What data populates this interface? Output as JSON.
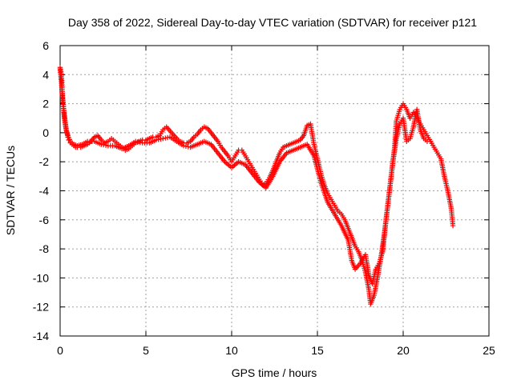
{
  "chart_data": {
    "type": "scatter",
    "title": "Day 358 of 2022, Sidereal Day-to-day VTEC variation (SDTVAR) for receiver p121",
    "xlabel": "GPS time / hours",
    "ylabel": "SDTVAR / TECUs",
    "xlim": [
      0,
      25
    ],
    "ylim": [
      -14,
      6
    ],
    "xticks": [
      0,
      5,
      10,
      15,
      20,
      25
    ],
    "xtick_labels": [
      "0",
      "5",
      "10",
      "15",
      "20",
      "25"
    ],
    "yticks": [
      -14,
      -12,
      -10,
      -8,
      -6,
      -4,
      -2,
      0,
      2,
      4,
      6
    ],
    "ytick_labels": [
      "-14",
      "-12",
      "-10",
      "-8",
      "-6",
      "-4",
      "-2",
      "0",
      "2",
      "4",
      "6"
    ],
    "grid": true,
    "marker": "+",
    "series": [
      {
        "name": "SDTVAR",
        "color": "#ff0000",
        "points": [
          [
            0.0,
            4.5
          ],
          [
            0.05,
            4.2
          ],
          [
            0.1,
            3.6
          ],
          [
            0.12,
            3.0
          ],
          [
            0.15,
            2.4
          ],
          [
            0.2,
            1.8
          ],
          [
            0.25,
            1.2
          ],
          [
            0.3,
            0.7
          ],
          [
            0.35,
            0.3
          ],
          [
            0.4,
            0.0
          ],
          [
            0.45,
            -0.3
          ],
          [
            0.5,
            -0.5
          ],
          [
            0.6,
            -0.7
          ],
          [
            0.7,
            -0.8
          ],
          [
            0.8,
            -0.9
          ],
          [
            0.9,
            -1.0
          ],
          [
            1.0,
            -1.0
          ],
          [
            1.2,
            -1.0
          ],
          [
            1.4,
            -0.9
          ],
          [
            1.6,
            -0.8
          ],
          [
            1.8,
            -0.6
          ],
          [
            2.0,
            -0.3
          ],
          [
            2.2,
            -0.2
          ],
          [
            2.4,
            -0.5
          ],
          [
            2.6,
            -0.7
          ],
          [
            2.8,
            -0.6
          ],
          [
            3.0,
            -0.4
          ],
          [
            3.2,
            -0.6
          ],
          [
            3.4,
            -0.8
          ],
          [
            3.6,
            -1.0
          ],
          [
            3.8,
            -1.2
          ],
          [
            4.0,
            -1.1
          ],
          [
            4.2,
            -0.9
          ],
          [
            4.4,
            -0.7
          ],
          [
            4.6,
            -0.6
          ],
          [
            4.8,
            -0.5
          ],
          [
            5.0,
            -0.5
          ],
          [
            5.2,
            -0.4
          ],
          [
            5.4,
            -0.3
          ],
          [
            5.6,
            -0.3
          ],
          [
            5.8,
            -0.2
          ],
          [
            6.0,
            0.2
          ],
          [
            6.2,
            0.4
          ],
          [
            6.5,
            0.0
          ],
          [
            6.8,
            -0.4
          ],
          [
            7.0,
            -0.6
          ],
          [
            7.2,
            -0.7
          ],
          [
            7.4,
            -0.7
          ],
          [
            7.6,
            -0.6
          ],
          [
            7.8,
            -0.3
          ],
          [
            8.0,
            -0.1
          ],
          [
            8.2,
            0.2
          ],
          [
            8.4,
            0.4
          ],
          [
            8.6,
            0.3
          ],
          [
            8.8,
            0.0
          ],
          [
            9.0,
            -0.3
          ],
          [
            9.2,
            -0.6
          ],
          [
            9.4,
            -1.0
          ],
          [
            9.6,
            -1.3
          ],
          [
            9.8,
            -1.6
          ],
          [
            10.0,
            -2.0
          ],
          [
            10.2,
            -1.6
          ],
          [
            10.4,
            -1.2
          ],
          [
            10.6,
            -1.2
          ],
          [
            10.8,
            -1.6
          ],
          [
            11.0,
            -2.0
          ],
          [
            11.2,
            -2.4
          ],
          [
            11.4,
            -2.8
          ],
          [
            11.6,
            -3.2
          ],
          [
            11.8,
            -3.6
          ],
          [
            12.0,
            -3.5
          ],
          [
            12.2,
            -3.1
          ],
          [
            12.4,
            -2.6
          ],
          [
            12.6,
            -2.0
          ],
          [
            12.8,
            -1.4
          ],
          [
            13.0,
            -1.0
          ],
          [
            13.2,
            -0.9
          ],
          [
            13.4,
            -0.8
          ],
          [
            13.6,
            -0.7
          ],
          [
            13.8,
            -0.6
          ],
          [
            14.0,
            -0.5
          ],
          [
            14.2,
            -0.2
          ],
          [
            14.4,
            0.5
          ],
          [
            14.6,
            0.6
          ],
          [
            14.8,
            -0.8
          ],
          [
            15.0,
            -1.8
          ],
          [
            15.2,
            -2.8
          ],
          [
            15.4,
            -3.6
          ],
          [
            15.6,
            -4.2
          ],
          [
            15.8,
            -4.6
          ],
          [
            16.0,
            -5.0
          ],
          [
            16.2,
            -5.4
          ],
          [
            16.4,
            -5.6
          ],
          [
            16.6,
            -6.0
          ],
          [
            16.8,
            -6.6
          ],
          [
            17.0,
            -7.2
          ],
          [
            17.2,
            -7.8
          ],
          [
            17.4,
            -8.2
          ],
          [
            17.6,
            -8.8
          ],
          [
            17.8,
            -9.6
          ],
          [
            18.0,
            -10.8
          ],
          [
            18.1,
            -11.8
          ],
          [
            18.3,
            -11.2
          ],
          [
            18.5,
            -10.0
          ],
          [
            18.7,
            -8.6
          ],
          [
            18.9,
            -7.0
          ],
          [
            19.1,
            -5.0
          ],
          [
            19.3,
            -3.0
          ],
          [
            19.5,
            -1.0
          ],
          [
            19.6,
            0.8
          ],
          [
            19.8,
            1.6
          ],
          [
            20.0,
            2.0
          ],
          [
            20.2,
            1.6
          ],
          [
            20.4,
            1.0
          ],
          [
            20.6,
            1.4
          ],
          [
            20.8,
            1.0
          ],
          [
            21.0,
            0.6
          ],
          [
            21.2,
            0.2
          ],
          [
            21.4,
            -0.2
          ],
          [
            21.6,
            -0.6
          ],
          [
            21.8,
            -1.0
          ],
          [
            22.0,
            -1.4
          ],
          [
            22.2,
            -1.8
          ],
          [
            22.4,
            -3.0
          ],
          [
            22.6,
            -4.0
          ],
          [
            22.8,
            -5.2
          ],
          [
            22.9,
            -6.4
          ]
        ],
        "points_alt": [
          [
            0.0,
            4.4
          ],
          [
            0.08,
            3.4
          ],
          [
            0.15,
            2.2
          ],
          [
            0.25,
            1.0
          ],
          [
            0.35,
            0.2
          ],
          [
            0.45,
            -0.2
          ],
          [
            0.6,
            -0.6
          ],
          [
            0.8,
            -0.8
          ],
          [
            1.0,
            -0.9
          ],
          [
            1.3,
            -0.8
          ],
          [
            1.6,
            -0.6
          ],
          [
            2.0,
            -0.6
          ],
          [
            2.4,
            -0.8
          ],
          [
            2.8,
            -0.9
          ],
          [
            3.2,
            -0.9
          ],
          [
            3.6,
            -1.1
          ],
          [
            4.0,
            -0.9
          ],
          [
            4.4,
            -0.6
          ],
          [
            4.8,
            -0.7
          ],
          [
            5.2,
            -0.7
          ],
          [
            5.6,
            -0.5
          ],
          [
            6.0,
            -0.4
          ],
          [
            6.4,
            -0.3
          ],
          [
            6.8,
            -0.6
          ],
          [
            7.2,
            -0.9
          ],
          [
            7.6,
            -1.0
          ],
          [
            8.0,
            -0.8
          ],
          [
            8.4,
            -0.6
          ],
          [
            8.8,
            -0.8
          ],
          [
            9.2,
            -1.4
          ],
          [
            9.6,
            -2.0
          ],
          [
            10.0,
            -2.4
          ],
          [
            10.4,
            -2.0
          ],
          [
            10.8,
            -2.2
          ],
          [
            11.2,
            -2.8
          ],
          [
            11.6,
            -3.4
          ],
          [
            12.0,
            -3.8
          ],
          [
            12.4,
            -3.0
          ],
          [
            12.8,
            -2.0
          ],
          [
            13.2,
            -1.4
          ],
          [
            13.6,
            -1.2
          ],
          [
            14.0,
            -1.0
          ],
          [
            14.4,
            -0.8
          ],
          [
            14.8,
            -1.6
          ],
          [
            15.2,
            -3.4
          ],
          [
            15.6,
            -4.8
          ],
          [
            16.0,
            -5.6
          ],
          [
            16.4,
            -6.4
          ],
          [
            16.8,
            -7.4
          ],
          [
            17.0,
            -8.8
          ],
          [
            17.2,
            -9.4
          ],
          [
            17.5,
            -9.0
          ],
          [
            17.8,
            -8.4
          ],
          [
            18.0,
            -9.8
          ],
          [
            18.2,
            -10.4
          ],
          [
            18.4,
            -9.4
          ],
          [
            18.6,
            -9.0
          ],
          [
            18.8,
            -8.2
          ],
          [
            19.0,
            -6.0
          ],
          [
            19.2,
            -4.0
          ],
          [
            19.4,
            -2.0
          ],
          [
            19.6,
            -0.4
          ],
          [
            19.8,
            0.6
          ],
          [
            20.0,
            1.0
          ],
          [
            20.2,
            -0.6
          ],
          [
            20.4,
            -0.4
          ],
          [
            20.6,
            0.4
          ],
          [
            20.8,
            1.6
          ],
          [
            21.0,
            0.2
          ],
          [
            21.2,
            -0.4
          ],
          [
            21.4,
            -0.6
          ],
          [
            21.6,
            -0.6
          ]
        ]
      }
    ]
  }
}
